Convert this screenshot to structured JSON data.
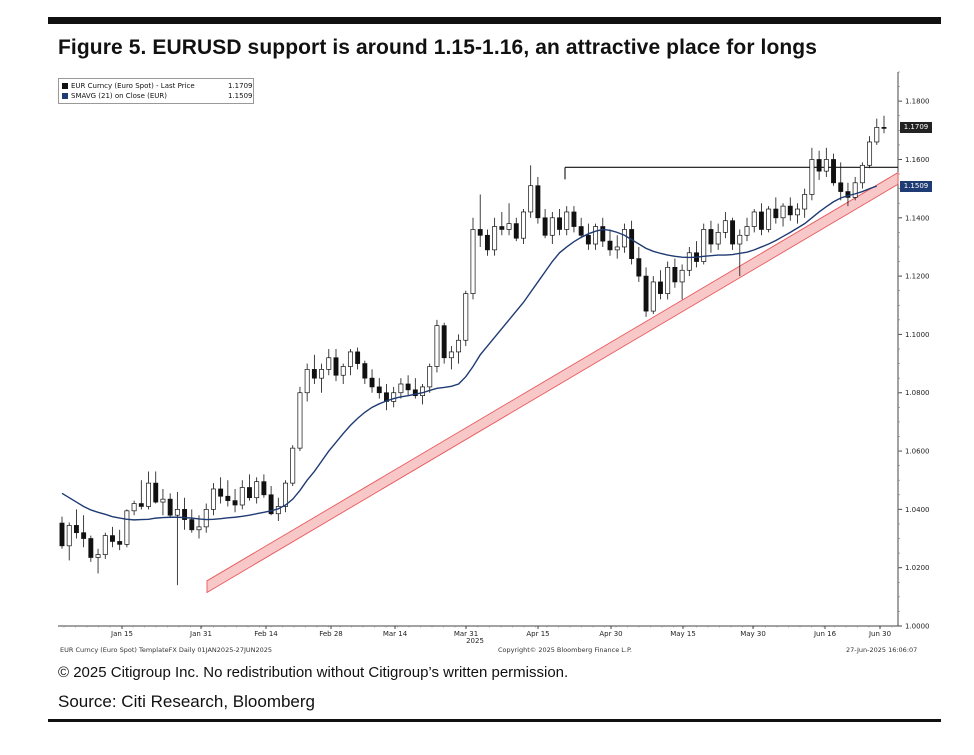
{
  "header": {
    "title": "Figure 5. EURUSD support is around 1.15-1.16, an attractive place for longs"
  },
  "legend": {
    "items": [
      {
        "label": "EUR Curncy (Euro Spot) - Last Price",
        "value": "1.1709",
        "color": "#111111"
      },
      {
        "label": "SMAVG (21)  on Close (EUR)",
        "value": "1.1509",
        "color": "#1f3b73"
      }
    ]
  },
  "price_tags": {
    "last": "1.1709",
    "sma": "1.1509",
    "last_color": "#222222",
    "sma_color": "#1f3b73"
  },
  "chart_footer": {
    "left": "EUR Curncy (Euro Spot) TemplateFX  Daily 01JAN2025-27JUN2025",
    "middle": "Copyright© 2025 Bloomberg Finance L.P.",
    "right": "27-Jun-2025 16:06:07"
  },
  "footnote": "© 2025 Citigroup Inc. No redistribution without Citigroup’s written permission.",
  "source": "Source: Citi Research, Bloomberg",
  "chart_data": {
    "type": "line",
    "subtype": "candlestick",
    "x_tick_labels": [
      "Jan 15",
      "Jan 31",
      "Feb 14",
      "Feb 28",
      "Mar 14",
      "Mar 31",
      "Apr 15",
      "Apr 30",
      "May 15",
      "May 30",
      "Jun 16",
      "Jun 30"
    ],
    "x_year_label": "2025",
    "y_tick_labels": [
      "1.0000",
      "1.0200",
      "1.0400",
      "1.0600",
      "1.0800",
      "1.1000",
      "1.1200",
      "1.1400",
      "1.1600",
      "1.1800"
    ],
    "ylim": [
      1.0,
      1.19
    ],
    "grid": false,
    "colors": {
      "up": "#ffffff",
      "down": "#111111",
      "sma": "#1f3b73",
      "trend_fill": "#f8c8c8",
      "trend_edge": "#e8595c",
      "resistance": "#111111"
    },
    "series": [
      {
        "name": "EUR Curncy (Euro Spot) - Last Price",
        "type": "candlestick"
      },
      {
        "name": "SMAVG (21)  on Close (EUR)",
        "type": "line"
      }
    ],
    "ohlc": [
      [
        1.0353,
        1.0375,
        1.0265,
        1.0275
      ],
      [
        1.0275,
        1.0355,
        1.0225,
        1.0345
      ],
      [
        1.0345,
        1.04,
        1.03,
        1.032
      ],
      [
        1.032,
        1.038,
        1.027,
        1.03
      ],
      [
        1.03,
        1.031,
        1.022,
        1.0235
      ],
      [
        1.0235,
        1.0265,
        1.018,
        1.0245
      ],
      [
        1.0245,
        1.032,
        1.023,
        1.031
      ],
      [
        1.031,
        1.034,
        1.027,
        1.029
      ],
      [
        1.029,
        1.033,
        1.026,
        1.028
      ],
      [
        1.028,
        1.04,
        1.027,
        1.0395
      ],
      [
        1.0395,
        1.043,
        1.038,
        1.042
      ],
      [
        1.042,
        1.05,
        1.04,
        1.041
      ],
      [
        1.041,
        1.053,
        1.04,
        1.049
      ],
      [
        1.049,
        1.053,
        1.042,
        1.0425
      ],
      [
        1.0425,
        1.047,
        1.038,
        1.0435
      ],
      [
        1.0435,
        1.0455,
        1.037,
        1.038
      ],
      [
        1.038,
        1.046,
        1.014,
        1.04
      ],
      [
        1.04,
        1.044,
        1.033,
        1.0365
      ],
      [
        1.0365,
        1.04,
        1.032,
        1.033
      ],
      [
        1.033,
        1.038,
        1.03,
        1.034
      ],
      [
        1.034,
        1.042,
        1.032,
        1.04
      ],
      [
        1.04,
        1.049,
        1.038,
        1.047
      ],
      [
        1.047,
        1.051,
        1.042,
        1.0445
      ],
      [
        1.0445,
        1.05,
        1.041,
        1.043
      ],
      [
        1.043,
        1.047,
        1.039,
        1.0415
      ],
      [
        1.0415,
        1.05,
        1.04,
        1.0475
      ],
      [
        1.0475,
        1.052,
        1.043,
        1.044
      ],
      [
        1.044,
        1.051,
        1.042,
        1.0495
      ],
      [
        1.0495,
        1.052,
        1.044,
        1.045
      ],
      [
        1.045,
        1.048,
        1.038,
        1.0385
      ],
      [
        1.0385,
        1.044,
        1.036,
        1.041
      ],
      [
        1.041,
        1.05,
        1.039,
        1.049
      ],
      [
        1.049,
        1.062,
        1.048,
        1.061
      ],
      [
        1.061,
        1.082,
        1.06,
        1.08
      ],
      [
        1.08,
        1.09,
        1.077,
        1.088
      ],
      [
        1.088,
        1.093,
        1.083,
        1.085
      ],
      [
        1.085,
        1.09,
        1.08,
        1.088
      ],
      [
        1.088,
        1.095,
        1.086,
        1.092
      ],
      [
        1.092,
        1.095,
        1.084,
        1.086
      ],
      [
        1.086,
        1.09,
        1.083,
        1.089
      ],
      [
        1.089,
        1.095,
        1.086,
        1.094
      ],
      [
        1.094,
        1.0955,
        1.088,
        1.09
      ],
      [
        1.09,
        1.091,
        1.083,
        1.085
      ],
      [
        1.085,
        1.088,
        1.08,
        1.082
      ],
      [
        1.082,
        1.085,
        1.078,
        1.08
      ],
      [
        1.08,
        1.083,
        1.074,
        1.077
      ],
      [
        1.077,
        1.082,
        1.075,
        1.08
      ],
      [
        1.08,
        1.085,
        1.078,
        1.083
      ],
      [
        1.083,
        1.086,
        1.079,
        1.081
      ],
      [
        1.081,
        1.085,
        1.078,
        1.079
      ],
      [
        1.079,
        1.083,
        1.076,
        1.082
      ],
      [
        1.082,
        1.09,
        1.08,
        1.089
      ],
      [
        1.089,
        1.105,
        1.087,
        1.103
      ],
      [
        1.103,
        1.104,
        1.09,
        1.092
      ],
      [
        1.092,
        1.096,
        1.088,
        1.094
      ],
      [
        1.094,
        1.1,
        1.09,
        1.098
      ],
      [
        1.098,
        1.115,
        1.096,
        1.114
      ],
      [
        1.114,
        1.14,
        1.112,
        1.136
      ],
      [
        1.136,
        1.148,
        1.13,
        1.134
      ],
      [
        1.134,
        1.136,
        1.127,
        1.129
      ],
      [
        1.129,
        1.14,
        1.127,
        1.137
      ],
      [
        1.137,
        1.142,
        1.134,
        1.136
      ],
      [
        1.136,
        1.145,
        1.134,
        1.138
      ],
      [
        1.138,
        1.14,
        1.132,
        1.133
      ],
      [
        1.133,
        1.143,
        1.131,
        1.142
      ],
      [
        1.142,
        1.158,
        1.14,
        1.151
      ],
      [
        1.151,
        1.154,
        1.138,
        1.14
      ],
      [
        1.14,
        1.143,
        1.133,
        1.134
      ],
      [
        1.134,
        1.142,
        1.131,
        1.14
      ],
      [
        1.14,
        1.143,
        1.134,
        1.136
      ],
      [
        1.136,
        1.144,
        1.134,
        1.142
      ],
      [
        1.142,
        1.144,
        1.135,
        1.137
      ],
      [
        1.137,
        1.14,
        1.133,
        1.134
      ],
      [
        1.134,
        1.138,
        1.129,
        1.131
      ],
      [
        1.131,
        1.138,
        1.129,
        1.137
      ],
      [
        1.137,
        1.14,
        1.13,
        1.132
      ],
      [
        1.132,
        1.136,
        1.127,
        1.129
      ],
      [
        1.129,
        1.134,
        1.126,
        1.13
      ],
      [
        1.13,
        1.138,
        1.128,
        1.136
      ],
      [
        1.136,
        1.139,
        1.124,
        1.126
      ],
      [
        1.126,
        1.13,
        1.118,
        1.12
      ],
      [
        1.12,
        1.123,
        1.106,
        1.108
      ],
      [
        1.108,
        1.12,
        1.107,
        1.118
      ],
      [
        1.118,
        1.122,
        1.112,
        1.114
      ],
      [
        1.114,
        1.125,
        1.112,
        1.123
      ],
      [
        1.123,
        1.126,
        1.116,
        1.118
      ],
      [
        1.118,
        1.124,
        1.112,
        1.122
      ],
      [
        1.122,
        1.13,
        1.12,
        1.128
      ],
      [
        1.128,
        1.132,
        1.123,
        1.125
      ],
      [
        1.125,
        1.138,
        1.124,
        1.136
      ],
      [
        1.136,
        1.139,
        1.128,
        1.131
      ],
      [
        1.131,
        1.138,
        1.129,
        1.135
      ],
      [
        1.135,
        1.142,
        1.133,
        1.139
      ],
      [
        1.139,
        1.14,
        1.129,
        1.131
      ],
      [
        1.131,
        1.136,
        1.12,
        1.134
      ],
      [
        1.134,
        1.14,
        1.132,
        1.137
      ],
      [
        1.137,
        1.143,
        1.135,
        1.142
      ],
      [
        1.142,
        1.145,
        1.134,
        1.136
      ],
      [
        1.136,
        1.144,
        1.135,
        1.143
      ],
      [
        1.143,
        1.147,
        1.138,
        1.14
      ],
      [
        1.14,
        1.145,
        1.137,
        1.144
      ],
      [
        1.144,
        1.147,
        1.139,
        1.141
      ],
      [
        1.141,
        1.145,
        1.138,
        1.143
      ],
      [
        1.143,
        1.15,
        1.14,
        1.148
      ],
      [
        1.148,
        1.164,
        1.146,
        1.16
      ],
      [
        1.16,
        1.163,
        1.153,
        1.156
      ],
      [
        1.156,
        1.164,
        1.154,
        1.16
      ],
      [
        1.16,
        1.162,
        1.151,
        1.152
      ],
      [
        1.152,
        1.159,
        1.146,
        1.149
      ],
      [
        1.149,
        1.152,
        1.144,
        1.147
      ],
      [
        1.147,
        1.154,
        1.146,
        1.152
      ],
      [
        1.152,
        1.159,
        1.15,
        1.158
      ],
      [
        1.158,
        1.168,
        1.157,
        1.166
      ],
      [
        1.166,
        1.174,
        1.165,
        1.171
      ],
      [
        1.171,
        1.175,
        1.169,
        1.1709
      ]
    ],
    "sma_21": [
      1.0455,
      1.044,
      1.0425,
      1.041,
      1.0398,
      1.039,
      1.0383,
      1.0375,
      1.037,
      1.0366,
      1.0364,
      1.0365,
      1.0366,
      1.037,
      1.0372,
      1.0373,
      1.0373,
      1.0372,
      1.037,
      1.0367,
      1.0365,
      1.0366,
      1.0368,
      1.0371,
      1.0373,
      1.0376,
      1.038,
      1.0385,
      1.039,
      1.0395,
      1.0402,
      1.0415,
      1.0435,
      1.0465,
      1.05,
      1.053,
      1.0565,
      1.06,
      1.063,
      1.066,
      1.0688,
      1.0712,
      1.0733,
      1.075,
      1.0762,
      1.0772,
      1.078,
      1.0786,
      1.079,
      1.0795,
      1.08,
      1.0808,
      1.0815,
      1.0818,
      1.0822,
      1.083,
      1.0855,
      1.089,
      1.093,
      1.096,
      1.099,
      1.102,
      1.105,
      1.108,
      1.111,
      1.1145,
      1.118,
      1.1215,
      1.125,
      1.128,
      1.13,
      1.1318,
      1.1333,
      1.1345,
      1.1354,
      1.136,
      1.1357,
      1.135,
      1.134,
      1.1325,
      1.131,
      1.1295,
      1.1285,
      1.1278,
      1.1272,
      1.1268,
      1.1265,
      1.1264,
      1.1265,
      1.1268,
      1.127,
      1.1272,
      1.1272,
      1.1274,
      1.1278,
      1.1282,
      1.129,
      1.13,
      1.131,
      1.1322,
      1.1336,
      1.135,
      1.1365,
      1.138,
      1.14,
      1.142,
      1.1438,
      1.1455,
      1.1468,
      1.1476,
      1.1482,
      1.149,
      1.15,
      1.1509
    ],
    "resistance_level": 1.1573,
    "trendline": {
      "from": [
        1.0115,
        1.0155
      ],
      "to": [
        1.1515,
        1.1555
      ]
    }
  }
}
